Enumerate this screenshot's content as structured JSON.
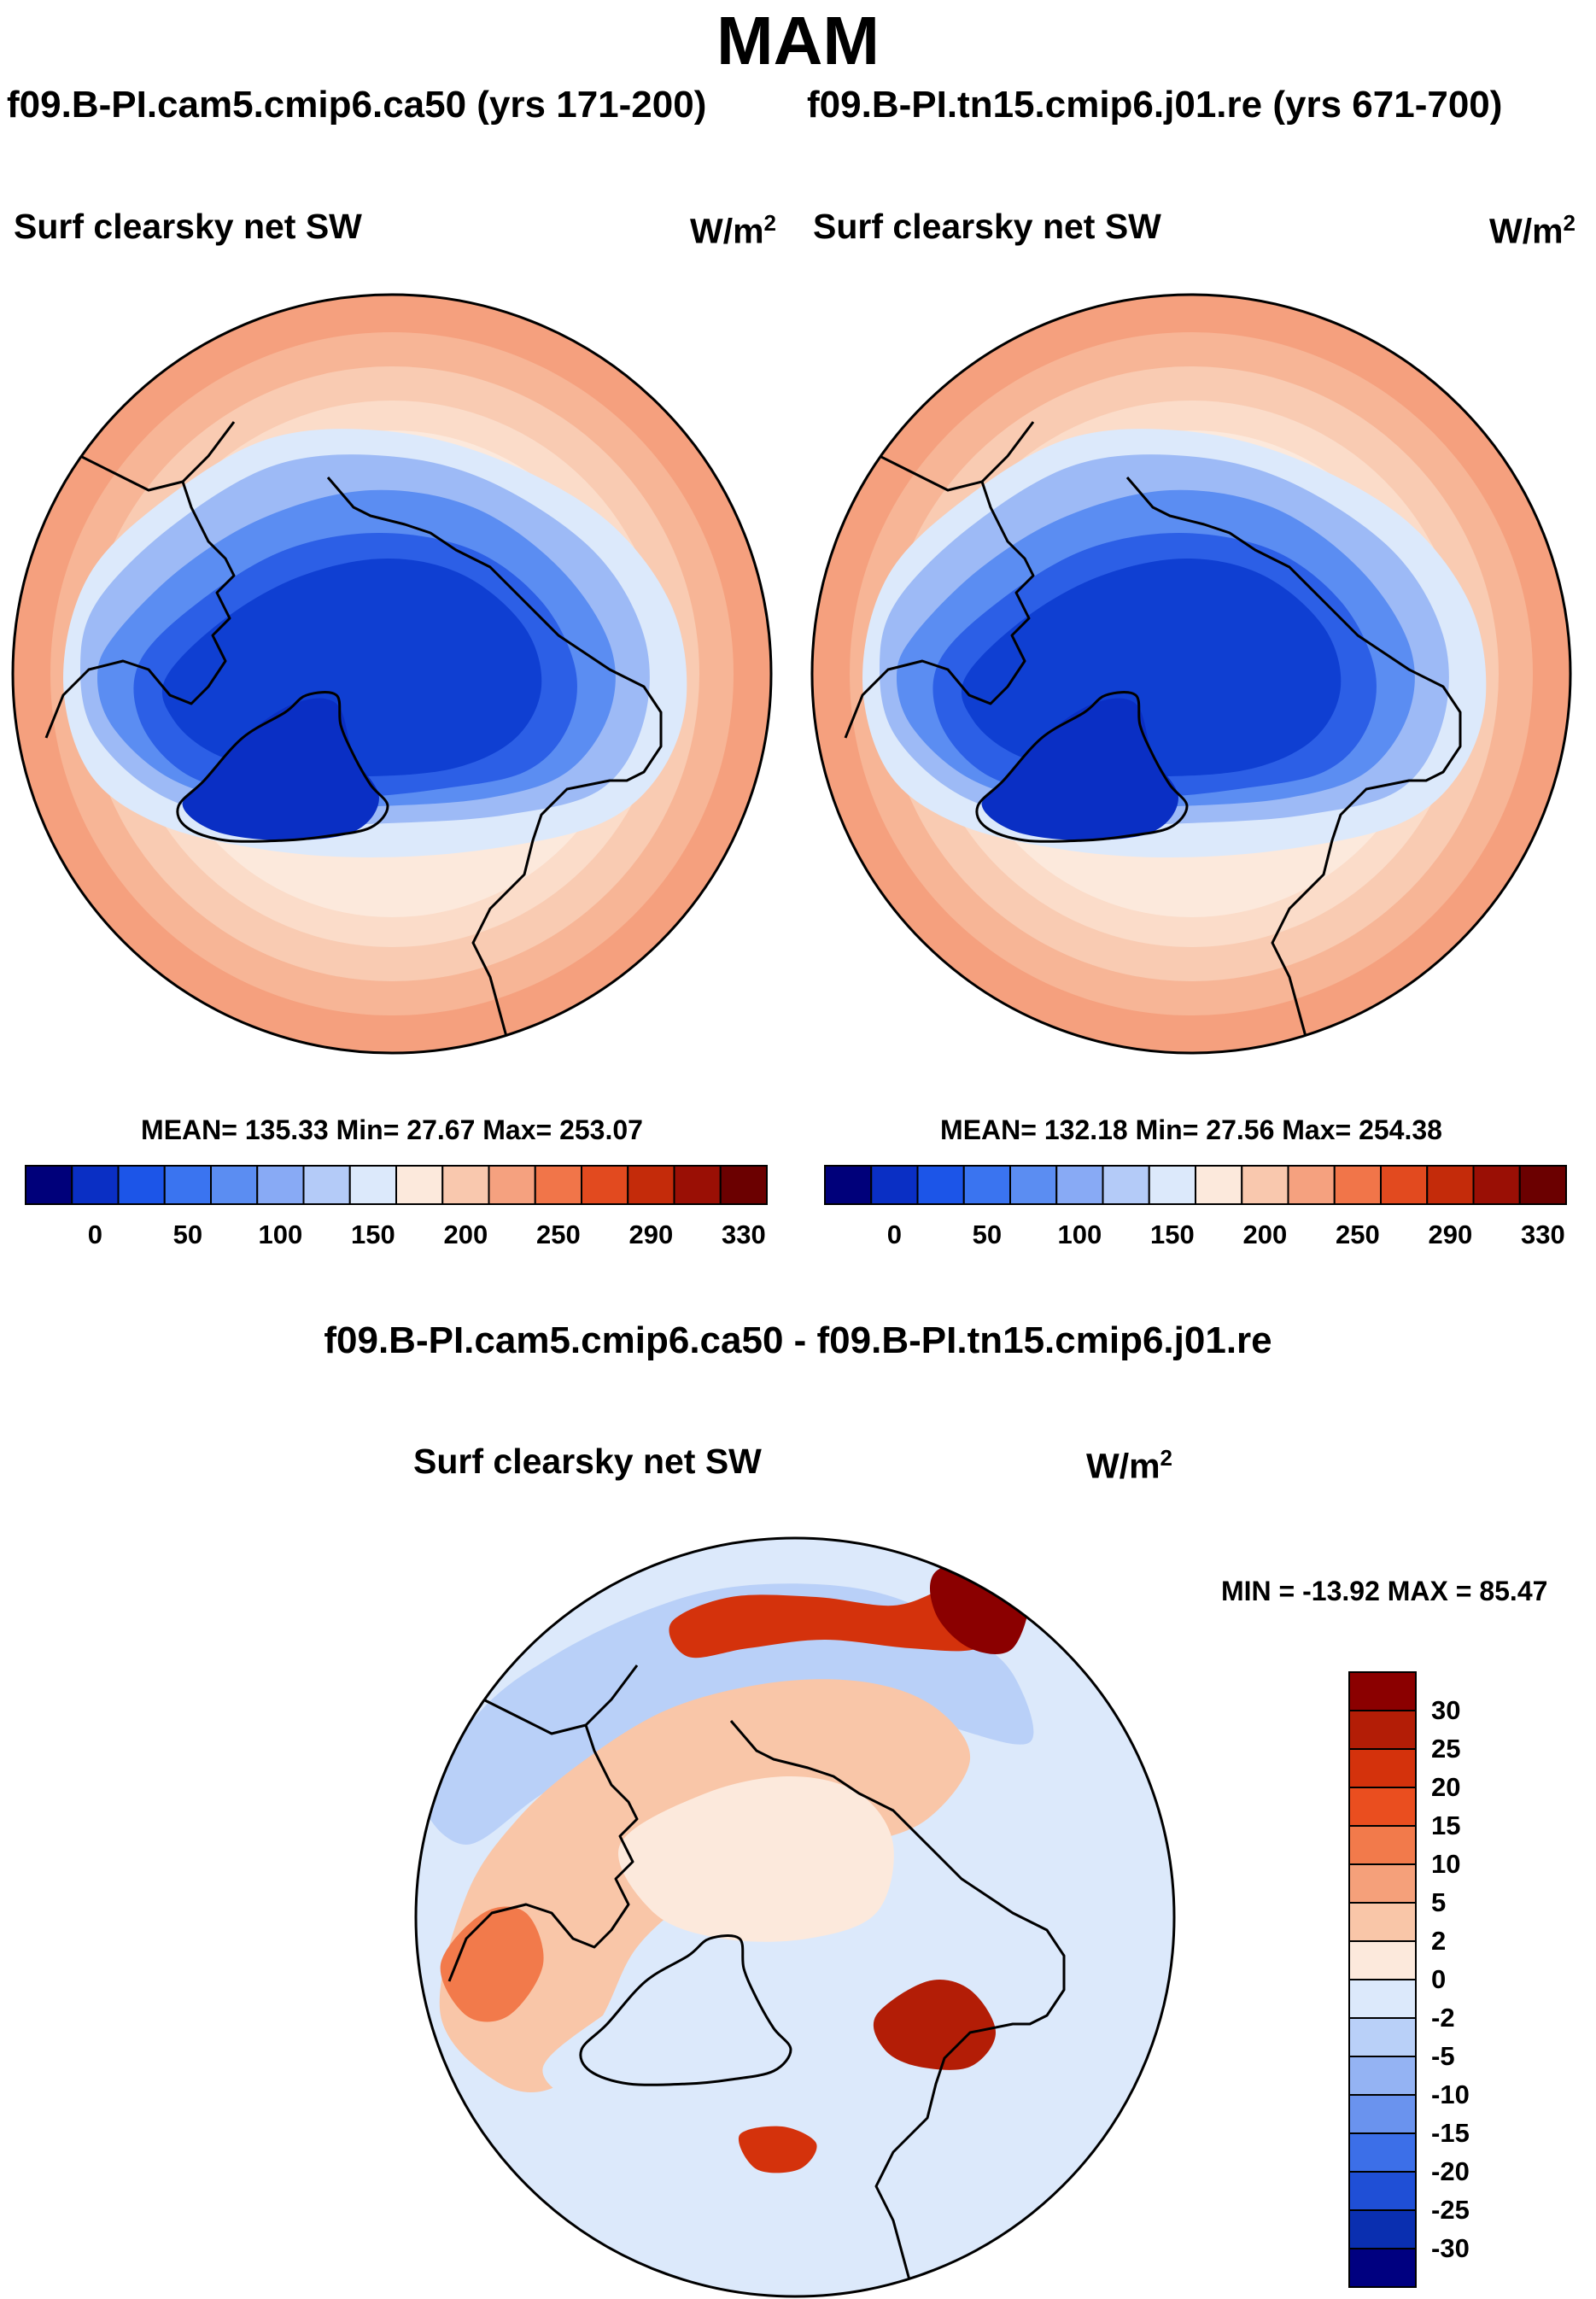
{
  "title": "MAM",
  "case_titles": {
    "left": "f09.B-PI.cam5.cmip6.ca50 (yrs 171-200)",
    "right": "f09.B-PI.tn15.cmip6.j01.re (yrs 671-700)"
  },
  "diff_title": "f09.B-PI.cam5.cmip6.ca50 - f09.B-PI.tn15.cmip6.j01.re",
  "chart_data": [
    {
      "type": "heatmap",
      "projection": "north-polar-stereographic",
      "panel_title": "Surf clearsky net SW",
      "units": "W/m",
      "units_exp": "2",
      "stats_text": "MEAN= 135.33  Min=  27.67  Max= 253.07",
      "mean": 135.33,
      "min": 27.67,
      "max": 253.07,
      "colorbar_orientation": "horizontal",
      "colorbar_ticks": [
        "0",
        "50",
        "100",
        "150",
        "200",
        "250",
        "290",
        "330"
      ],
      "colorbar_colors": [
        "#00007a",
        "#0a2fc4",
        "#1c55e8",
        "#3a74f0",
        "#5b8df2",
        "#88aaf5",
        "#b4cbf8",
        "#dce9fb",
        "#fce9dc",
        "#f9c8ae",
        "#f5a17f",
        "#f17549",
        "#e24a1f",
        "#c42b0a",
        "#9a0f05",
        "#6b0000"
      ]
    },
    {
      "type": "heatmap",
      "projection": "north-polar-stereographic",
      "panel_title": "Surf clearsky net SW",
      "units": "W/m",
      "units_exp": "2",
      "stats_text": "MEAN= 132.18  Min=  27.56  Max= 254.38",
      "mean": 132.18,
      "min": 27.56,
      "max": 254.38,
      "colorbar_orientation": "horizontal",
      "colorbar_ticks": [
        "0",
        "50",
        "100",
        "150",
        "200",
        "250",
        "290",
        "330"
      ],
      "colorbar_colors": [
        "#00007a",
        "#0a2fc4",
        "#1c55e8",
        "#3a74f0",
        "#5b8df2",
        "#88aaf5",
        "#b4cbf8",
        "#dce9fb",
        "#fce9dc",
        "#f9c8ae",
        "#f5a17f",
        "#f17549",
        "#e24a1f",
        "#c42b0a",
        "#9a0f05",
        "#6b0000"
      ]
    },
    {
      "type": "heatmap",
      "projection": "north-polar-stereographic",
      "panel_title": "Surf clearsky net SW",
      "units": "W/m",
      "units_exp": "2",
      "stats_text": "MIN = -13.92 MAX =  85.47",
      "min": -13.92,
      "max": 85.47,
      "colorbar_orientation": "vertical",
      "colorbar_ticks": [
        "30",
        "25",
        "20",
        "15",
        "10",
        "5",
        "2",
        "0",
        "-2",
        "-5",
        "-10",
        "-15",
        "-20",
        "-25",
        "-30"
      ],
      "colorbar_colors": [
        "#8b0000",
        "#b31d06",
        "#d4320c",
        "#ea4e1f",
        "#f27a4b",
        "#f5a07a",
        "#f9c6a8",
        "#fce9dc",
        "#dce9fb",
        "#b9d0f8",
        "#94b3f3",
        "#6a93ee",
        "#3c6fe8",
        "#1f4fd6",
        "#0a2fb0",
        "#000080"
      ]
    }
  ]
}
